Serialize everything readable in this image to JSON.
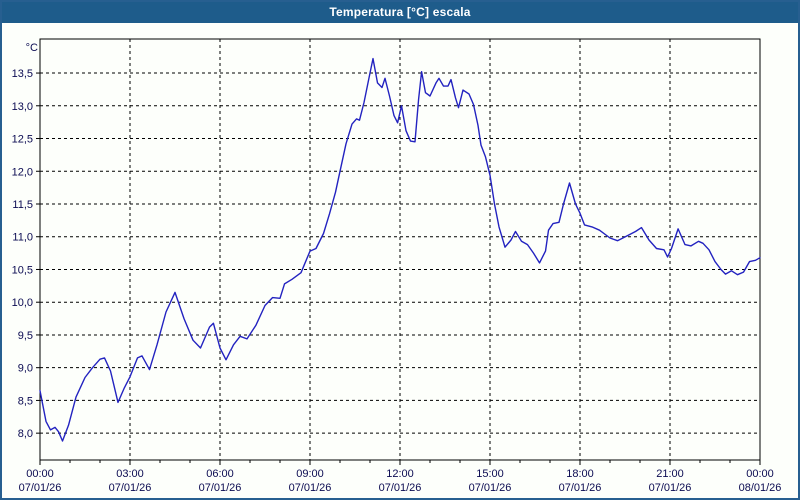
{
  "window": {
    "title": "Temperatura [°C] escala"
  },
  "colors": {
    "titlebar_bg": "#1e5c8b",
    "frame_border": "#275f90",
    "window_bg": "#fdfffb",
    "plot_bg": "#fdfffb",
    "plot_border": "#000000",
    "grid": "#000000",
    "tick_label": "#0b0b52",
    "line": "#2323c0"
  },
  "chart_data": {
    "type": "line",
    "title": "Temperatura [°C] escala",
    "y_unit_label": "°C",
    "ylim": [
      7.59,
      14.02
    ],
    "xlim_hours": [
      0,
      24
    ],
    "grid_style": "dashed",
    "legend": "none",
    "yticks": [
      {
        "value": 8.0,
        "label": "8,0"
      },
      {
        "value": 8.5,
        "label": "8,5"
      },
      {
        "value": 9.0,
        "label": "9,0"
      },
      {
        "value": 9.5,
        "label": "9,5"
      },
      {
        "value": 10.0,
        "label": "10,0"
      },
      {
        "value": 10.5,
        "label": "10,5"
      },
      {
        "value": 11.0,
        "label": "11,0"
      },
      {
        "value": 11.5,
        "label": "11,5"
      },
      {
        "value": 12.0,
        "label": "12,0"
      },
      {
        "value": 12.5,
        "label": "12,5"
      },
      {
        "value": 13.0,
        "label": "13,0"
      },
      {
        "value": 13.5,
        "label": "13,5"
      }
    ],
    "xticks_major": [
      {
        "hour": 0,
        "time": "00:00",
        "date": "07/01/26"
      },
      {
        "hour": 3,
        "time": "03:00",
        "date": "07/01/26"
      },
      {
        "hour": 6,
        "time": "06:00",
        "date": "07/01/26"
      },
      {
        "hour": 9,
        "time": "09:00",
        "date": "07/01/26"
      },
      {
        "hour": 12,
        "time": "12:00",
        "date": "07/01/26"
      },
      {
        "hour": 15,
        "time": "15:00",
        "date": "07/01/26"
      },
      {
        "hour": 18,
        "time": "18:00",
        "date": "07/01/26"
      },
      {
        "hour": 21,
        "time": "21:00",
        "date": "07/01/26"
      },
      {
        "hour": 24,
        "time": "00:00",
        "date": "08/01/26"
      }
    ],
    "x_minor_step_hours": 1,
    "vertical_grid_hours": [
      3,
      6,
      9,
      12,
      15,
      18,
      21
    ],
    "series": [
      {
        "name": "Temperatura",
        "color": "#2323c0",
        "points": [
          [
            0.0,
            8.65
          ],
          [
            0.2,
            8.18
          ],
          [
            0.35,
            8.05
          ],
          [
            0.5,
            8.09
          ],
          [
            0.62,
            8.02
          ],
          [
            0.75,
            7.88
          ],
          [
            0.95,
            8.12
          ],
          [
            1.2,
            8.55
          ],
          [
            1.5,
            8.85
          ],
          [
            1.75,
            9.0
          ],
          [
            2.0,
            9.13
          ],
          [
            2.15,
            9.15
          ],
          [
            2.35,
            8.95
          ],
          [
            2.6,
            8.47
          ],
          [
            2.8,
            8.68
          ],
          [
            3.0,
            8.86
          ],
          [
            3.25,
            9.15
          ],
          [
            3.4,
            9.18
          ],
          [
            3.65,
            8.97
          ],
          [
            3.9,
            9.35
          ],
          [
            4.2,
            9.85
          ],
          [
            4.5,
            10.15
          ],
          [
            4.8,
            9.75
          ],
          [
            5.1,
            9.42
          ],
          [
            5.35,
            9.3
          ],
          [
            5.65,
            9.62
          ],
          [
            5.78,
            9.68
          ],
          [
            6.0,
            9.3
          ],
          [
            6.2,
            9.12
          ],
          [
            6.45,
            9.35
          ],
          [
            6.67,
            9.48
          ],
          [
            6.9,
            9.44
          ],
          [
            7.2,
            9.65
          ],
          [
            7.5,
            9.95
          ],
          [
            7.75,
            10.07
          ],
          [
            8.0,
            10.06
          ],
          [
            8.15,
            10.28
          ],
          [
            8.4,
            10.35
          ],
          [
            8.7,
            10.45
          ],
          [
            9.0,
            10.78
          ],
          [
            9.2,
            10.82
          ],
          [
            9.45,
            11.05
          ],
          [
            9.65,
            11.35
          ],
          [
            9.85,
            11.68
          ],
          [
            10.0,
            12.0
          ],
          [
            10.2,
            12.42
          ],
          [
            10.4,
            12.72
          ],
          [
            10.55,
            12.8
          ],
          [
            10.65,
            12.78
          ],
          [
            10.8,
            13.05
          ],
          [
            11.0,
            13.5
          ],
          [
            11.1,
            13.72
          ],
          [
            11.25,
            13.35
          ],
          [
            11.4,
            13.28
          ],
          [
            11.5,
            13.42
          ],
          [
            11.65,
            13.15
          ],
          [
            11.8,
            12.85
          ],
          [
            11.92,
            12.74
          ],
          [
            12.05,
            13.0
          ],
          [
            12.2,
            12.62
          ],
          [
            12.35,
            12.46
          ],
          [
            12.5,
            12.45
          ],
          [
            12.62,
            13.1
          ],
          [
            12.72,
            13.52
          ],
          [
            12.85,
            13.2
          ],
          [
            13.0,
            13.15
          ],
          [
            13.2,
            13.35
          ],
          [
            13.3,
            13.42
          ],
          [
            13.45,
            13.3
          ],
          [
            13.6,
            13.3
          ],
          [
            13.7,
            13.4
          ],
          [
            13.85,
            13.12
          ],
          [
            13.95,
            12.97
          ],
          [
            14.1,
            13.24
          ],
          [
            14.3,
            13.18
          ],
          [
            14.45,
            13.02
          ],
          [
            14.6,
            12.7
          ],
          [
            14.7,
            12.4
          ],
          [
            14.85,
            12.22
          ],
          [
            15.0,
            11.94
          ],
          [
            15.15,
            11.5
          ],
          [
            15.3,
            11.15
          ],
          [
            15.5,
            10.84
          ],
          [
            15.7,
            10.95
          ],
          [
            15.85,
            11.08
          ],
          [
            16.05,
            10.93
          ],
          [
            16.25,
            10.88
          ],
          [
            16.45,
            10.75
          ],
          [
            16.65,
            10.6
          ],
          [
            16.85,
            10.78
          ],
          [
            16.95,
            11.1
          ],
          [
            17.1,
            11.2
          ],
          [
            17.3,
            11.22
          ],
          [
            17.45,
            11.5
          ],
          [
            17.65,
            11.82
          ],
          [
            17.85,
            11.5
          ],
          [
            18.0,
            11.36
          ],
          [
            18.15,
            11.18
          ],
          [
            18.4,
            11.15
          ],
          [
            18.65,
            11.1
          ],
          [
            19.0,
            10.98
          ],
          [
            19.25,
            10.94
          ],
          [
            19.6,
            11.02
          ],
          [
            19.85,
            11.08
          ],
          [
            20.05,
            11.14
          ],
          [
            20.3,
            10.95
          ],
          [
            20.55,
            10.82
          ],
          [
            20.8,
            10.8
          ],
          [
            20.92,
            10.69
          ],
          [
            21.05,
            10.82
          ],
          [
            21.27,
            11.12
          ],
          [
            21.5,
            10.88
          ],
          [
            21.7,
            10.86
          ],
          [
            21.95,
            10.93
          ],
          [
            22.1,
            10.9
          ],
          [
            22.3,
            10.8
          ],
          [
            22.5,
            10.62
          ],
          [
            22.7,
            10.5
          ],
          [
            22.85,
            10.43
          ],
          [
            23.05,
            10.48
          ],
          [
            23.25,
            10.42
          ],
          [
            23.45,
            10.46
          ],
          [
            23.65,
            10.62
          ],
          [
            23.85,
            10.64
          ],
          [
            24.0,
            10.68
          ]
        ]
      }
    ]
  }
}
